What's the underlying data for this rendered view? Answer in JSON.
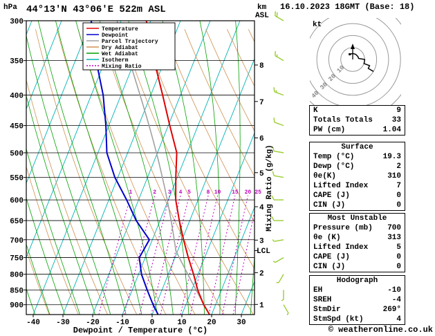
{
  "header": {
    "pressure_unit": "hPa",
    "station": "44°13'N 43°06'E 522m ASL",
    "datetime": "16.10.2023 18GMT (Base: 18)",
    "alt_unit_line1": "km",
    "alt_unit_line2": "ASL",
    "copyright": "© weatheronline.co.uk"
  },
  "chart_data": {
    "type": "skewt_log_p_sounding",
    "xlabel": "Dewpoint / Temperature (°C)",
    "x_ticks": [
      -40,
      -30,
      -20,
      -10,
      0,
      10,
      20,
      30
    ],
    "pressure_ticks": [
      300,
      350,
      400,
      450,
      500,
      550,
      600,
      650,
      700,
      750,
      800,
      850,
      900
    ],
    "axes": {
      "p_top": 300,
      "p_bot": 935,
      "t_min": -40,
      "t_max": 34
    },
    "km_ticks": [
      {
        "km": 1,
        "p": 899
      },
      {
        "km": 2,
        "p": 795
      },
      {
        "km": 3,
        "p": 701
      },
      {
        "km": 4,
        "p": 616
      },
      {
        "km": 5,
        "p": 540
      },
      {
        "km": 6,
        "p": 472
      },
      {
        "km": 7,
        "p": 410
      },
      {
        "km": 8,
        "p": 356
      }
    ],
    "lcl_label": "LCL",
    "lcl_pressure": 730,
    "mixing_ratio_axis_label": "Mixing Ratio (g/kg)",
    "mixing_ratio_values": [
      1,
      2,
      3,
      4,
      5,
      8,
      10,
      15,
      20,
      25
    ],
    "legend": [
      {
        "label": "Temperature",
        "color": "#e00000",
        "dash": ""
      },
      {
        "label": "Dewpoint",
        "color": "#0000cc",
        "dash": ""
      },
      {
        "label": "Parcel Trajectory",
        "color": "#a0a0a0",
        "dash": ""
      },
      {
        "label": "Dry Adiabat",
        "color": "#d09050",
        "dash": ""
      },
      {
        "label": "Wet Adiabat",
        "color": "#00a000",
        "dash": ""
      },
      {
        "label": "Isotherm",
        "color": "#00b4b4",
        "dash": ""
      },
      {
        "label": "Mixing Ratio",
        "color": "#c000c0",
        "dash": "2 2"
      }
    ],
    "temperature_profile": {
      "pressure": [
        935,
        900,
        850,
        800,
        750,
        700,
        650,
        600,
        550,
        500,
        450,
        400,
        350,
        300
      ],
      "temp": [
        19.3,
        16.0,
        12.0,
        8.5,
        4.5,
        0.5,
        -3.5,
        -7.5,
        -10.5,
        -13.5,
        -19.5,
        -26.0,
        -33.5,
        -41.5
      ]
    },
    "dewpoint_profile": {
      "pressure": [
        935,
        900,
        850,
        800,
        750,
        700,
        650,
        600,
        550,
        500,
        450,
        400,
        350,
        300
      ],
      "temp": [
        2,
        -1,
        -5,
        -9,
        -12,
        -11,
        -18,
        -24,
        -31,
        -37,
        -41,
        -46,
        -53,
        -60
      ]
    },
    "parcel": {
      "pressure": 935,
      "temp": 19.3,
      "dewpoint": 2,
      "lcl_pressure": 730
    },
    "winds": [
      {
        "p": 900,
        "dir": 150,
        "spd": 5
      },
      {
        "p": 850,
        "dir": 180,
        "spd": 5
      },
      {
        "p": 800,
        "dir": 210,
        "spd": 5
      },
      {
        "p": 750,
        "dir": 240,
        "spd": 5
      },
      {
        "p": 700,
        "dir": 260,
        "spd": 5
      },
      {
        "p": 650,
        "dir": 270,
        "spd": 10
      },
      {
        "p": 600,
        "dir": 270,
        "spd": 10
      },
      {
        "p": 550,
        "dir": 280,
        "spd": 10
      },
      {
        "p": 500,
        "dir": 280,
        "spd": 10
      },
      {
        "p": 450,
        "dir": 290,
        "spd": 10
      },
      {
        "p": 400,
        "dir": 290,
        "spd": 15
      },
      {
        "p": 350,
        "dir": 300,
        "spd": 15
      },
      {
        "p": 300,
        "dir": 300,
        "spd": 20
      }
    ],
    "colors": {
      "temperature": "#e00000",
      "dewpoint": "#0000cc",
      "parcel": "#a0a0a0",
      "dry_adiabat": "#d09050",
      "wet_adiabat": "#00a000",
      "isotherm": "#00b4b4",
      "mixing_ratio": "#c000c0",
      "wind_barb": "#9acd32",
      "frame": "#000000"
    }
  },
  "hodograph": {
    "unit_label": "kt",
    "rings": [
      10,
      20,
      30,
      40,
      50
    ],
    "ring_labels": [
      "10",
      "20",
      "30",
      "40",
      "50"
    ]
  },
  "indices": {
    "rows": [
      {
        "label": "K",
        "value": "9"
      },
      {
        "label": "Totals Totals",
        "value": "33"
      },
      {
        "label": "PW (cm)",
        "value": "1.04"
      }
    ]
  },
  "surface": {
    "title": "Surface",
    "rows": [
      {
        "label": "Temp (°C)",
        "value": "19.3"
      },
      {
        "label": "Dewp (°C)",
        "value": "2"
      },
      {
        "label": "θe(K)",
        "value": "310"
      },
      {
        "label": "Lifted Index",
        "value": "7"
      },
      {
        "label": "CAPE (J)",
        "value": "0"
      },
      {
        "label": "CIN (J)",
        "value": "0"
      }
    ]
  },
  "most_unstable": {
    "title": "Most Unstable",
    "rows": [
      {
        "label": "Pressure (mb)",
        "value": "700"
      },
      {
        "label": "θe (K)",
        "value": "313"
      },
      {
        "label": "Lifted Index",
        "value": "5"
      },
      {
        "label": "CAPE (J)",
        "value": "0"
      },
      {
        "label": "CIN (J)",
        "value": "0"
      }
    ]
  },
  "hodograph_stats": {
    "title": "Hodograph",
    "rows": [
      {
        "label": "EH",
        "value": "-10"
      },
      {
        "label": "SREH",
        "value": "-4"
      },
      {
        "label": "StmDir",
        "value": "269°"
      },
      {
        "label": "StmSpd (kt)",
        "value": "4"
      }
    ]
  }
}
